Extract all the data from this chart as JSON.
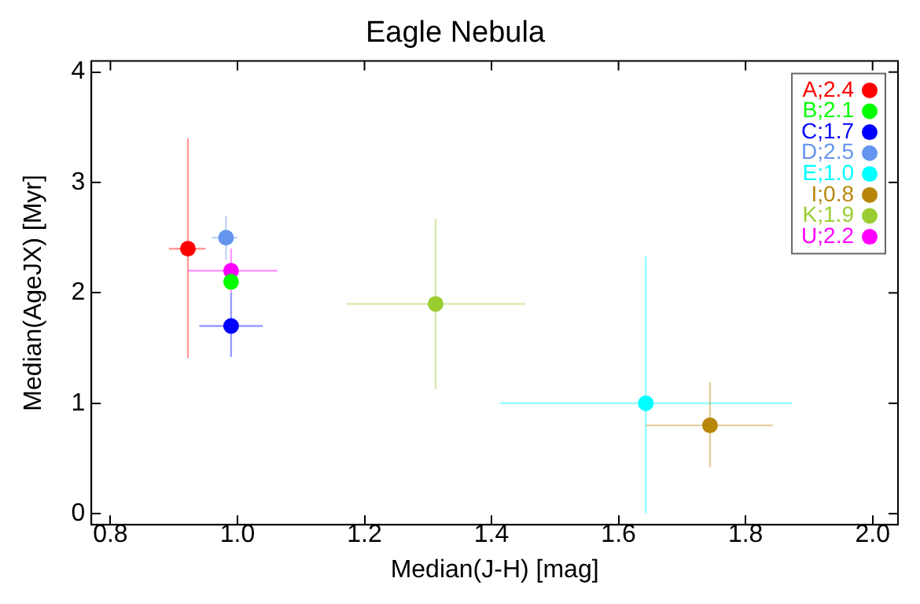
{
  "chart_data": {
    "type": "scatter",
    "title": "Eagle Nebula",
    "xlabel": "Median(J-H) [mag]",
    "ylabel": "Median(AgeJX) [Myr]",
    "xlim": [
      0.77,
      2.04
    ],
    "ylim": [
      -0.1,
      4.1
    ],
    "xticks": [
      0.8,
      {
        "value": 1,
        "label": "1.0"
      },
      1.2,
      1.4,
      1.6,
      1.8,
      {
        "value": 2,
        "label": "2.0"
      }
    ],
    "yticks": [
      0,
      1,
      2,
      3,
      4
    ],
    "grid": false,
    "legend": "top right",
    "marker": "circle",
    "series": [
      {
        "name": "A;2.4",
        "color": "#ff0000",
        "x": [
          0.922
        ],
        "values": [
          2.4
        ],
        "errors": [
          [
            1.41,
            3.4
          ]
        ],
        "xerrors": [
          [
            0.892,
            0.95
          ]
        ]
      },
      {
        "name": "B;2.1",
        "color": "#00ff00",
        "x": [
          0.99
        ],
        "values": [
          2.1
        ]
      },
      {
        "name": "C;1.7",
        "color": "#0000ff",
        "x": [
          0.99
        ],
        "values": [
          1.7
        ],
        "errors": [
          [
            1.42,
            2.0
          ]
        ],
        "xerrors": [
          [
            0.94,
            1.04
          ]
        ]
      },
      {
        "name": "D;2.5",
        "color": "#6495ed",
        "x": [
          0.982
        ],
        "values": [
          2.5
        ],
        "errors": [
          [
            2.3,
            2.7
          ]
        ],
        "xerrors": [
          [
            0.96,
            1.0
          ]
        ]
      },
      {
        "name": "E;1.0",
        "color": "#00ffff",
        "x": [
          1.643
        ],
        "values": [
          1.0
        ],
        "errors": [
          [
            0,
            2.33
          ]
        ],
        "xerrors": [
          [
            1.413,
            1.873
          ]
        ]
      },
      {
        "name": "I;0.8",
        "color": "#b8860b",
        "x": [
          1.744
        ],
        "values": [
          0.8
        ],
        "errors": [
          [
            0.42,
            1.19
          ]
        ],
        "xerrors": [
          [
            1.643,
            1.843
          ]
        ]
      },
      {
        "name": "K;1.9",
        "color": "#9acd32",
        "x": [
          1.312
        ],
        "values": [
          1.9
        ],
        "errors": [
          [
            1.13,
            2.67
          ]
        ],
        "xerrors": [
          [
            1.172,
            1.453
          ]
        ]
      },
      {
        "name": "U;2.2",
        "color": "#ff00ff",
        "x": [
          0.99
        ],
        "values": [
          2.2
        ],
        "errors": [
          [
            2.0,
            2.4
          ]
        ],
        "xerrors": [
          [
            0.922,
            1.063
          ]
        ]
      }
    ]
  }
}
